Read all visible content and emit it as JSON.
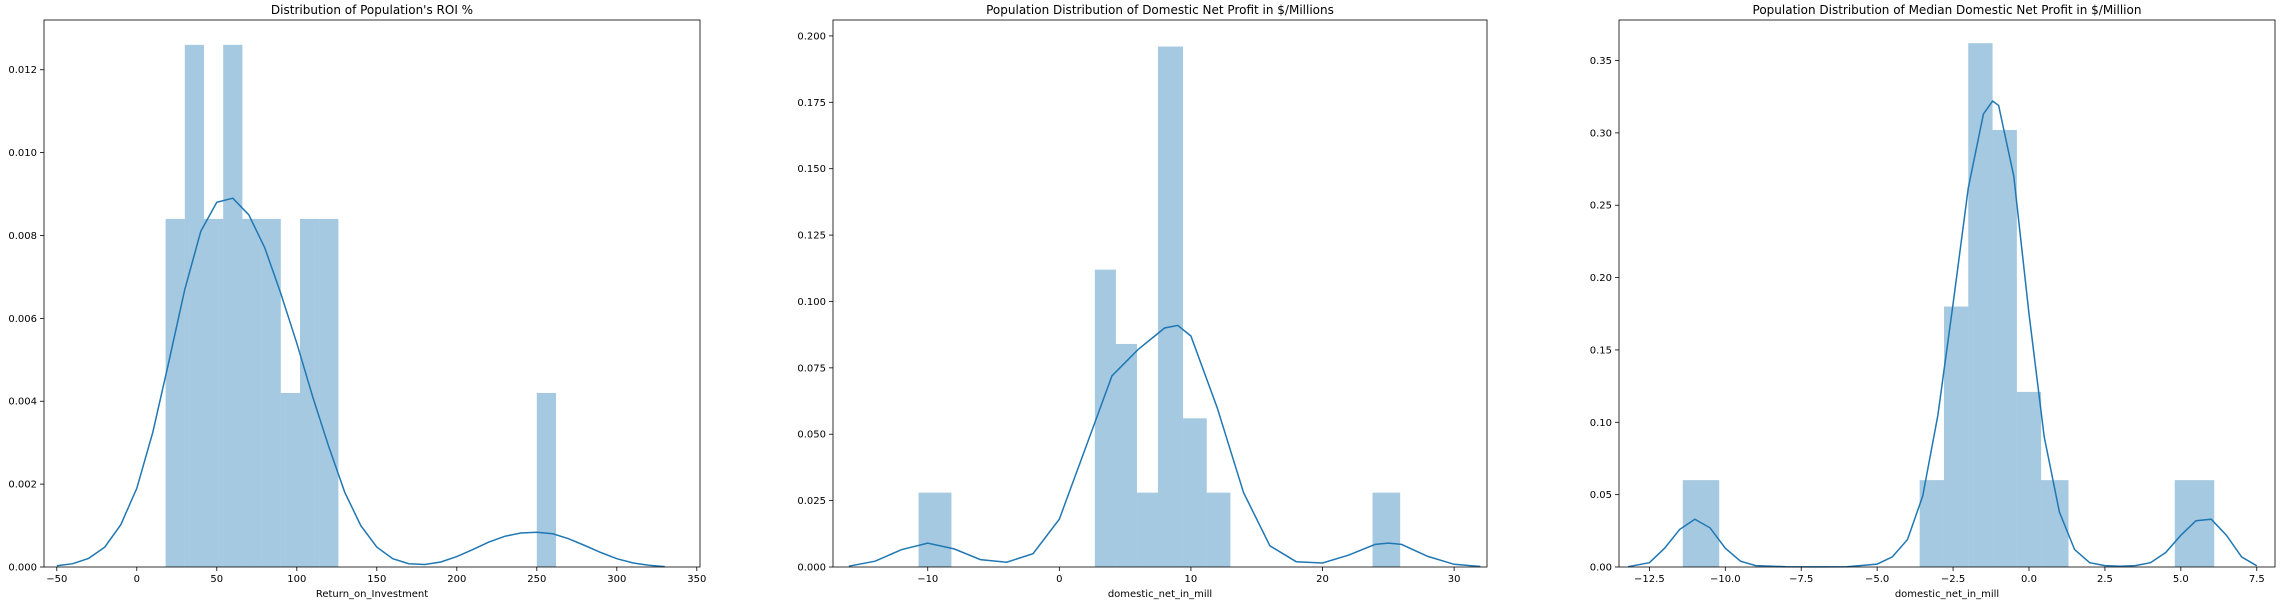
{
  "chart_data": [
    {
      "type": "histogram",
      "title": "Distribution of Population's ROI %",
      "xlabel": "Return_on_Investment",
      "ylabel": "",
      "xlim": [
        -58,
        352
      ],
      "ylim": [
        0,
        0.0132
      ],
      "xticks": [
        -50,
        0,
        50,
        100,
        150,
        200,
        250,
        300,
        350
      ],
      "yticks": [
        0.0,
        0.002,
        0.004,
        0.006,
        0.008,
        0.01,
        0.012
      ],
      "ytick_decimals": 3,
      "bins": [
        {
          "x0": 18,
          "x1": 30,
          "value": 0.0084
        },
        {
          "x0": 30,
          "x1": 42,
          "value": 0.0126
        },
        {
          "x0": 42,
          "x1": 54,
          "value": 0.0084
        },
        {
          "x0": 54,
          "x1": 66,
          "value": 0.0126
        },
        {
          "x0": 66,
          "x1": 78,
          "value": 0.0084
        },
        {
          "x0": 78,
          "x1": 90,
          "value": 0.0084
        },
        {
          "x0": 90,
          "x1": 102,
          "value": 0.0042
        },
        {
          "x0": 102,
          "x1": 114,
          "value": 0.0084
        },
        {
          "x0": 114,
          "x1": 126,
          "value": 0.0084
        },
        {
          "x0": 250,
          "x1": 262,
          "value": 0.0042
        }
      ],
      "kde": {
        "x": [
          -50,
          -40,
          -30,
          -20,
          -10,
          0,
          10,
          20,
          30,
          40,
          50,
          60,
          70,
          80,
          90,
          100,
          110,
          120,
          130,
          140,
          150,
          160,
          170,
          180,
          190,
          200,
          210,
          220,
          230,
          240,
          250,
          260,
          270,
          280,
          290,
          300,
          310,
          320,
          330
        ],
        "y": [
          3e-05,
          8e-05,
          0.00021,
          0.00048,
          0.00102,
          0.0019,
          0.00325,
          0.00495,
          0.0067,
          0.0081,
          0.0088,
          0.0089,
          0.0085,
          0.0077,
          0.0066,
          0.0054,
          0.0041,
          0.0029,
          0.0018,
          0.001,
          0.00048,
          0.0002,
          8e-05,
          6e-05,
          0.00012,
          0.00025,
          0.00042,
          0.0006,
          0.00074,
          0.00082,
          0.00084,
          0.0008,
          0.00068,
          0.00052,
          0.00035,
          0.0002,
          0.0001,
          4e-05,
          1e-05
        ]
      }
    },
    {
      "type": "histogram",
      "title": "Population Distribution of Domestic Net Profit in $/Millions",
      "xlabel": "domestic_net_in_mill",
      "ylabel": "",
      "xlim": [
        -17.2,
        32.5
      ],
      "ylim": [
        0,
        0.206
      ],
      "xticks": [
        -10,
        0,
        10,
        20,
        30
      ],
      "yticks": [
        0.0,
        0.025,
        0.05,
        0.075,
        0.1,
        0.125,
        0.15,
        0.175,
        0.2
      ],
      "ytick_decimals": 3,
      "bins": [
        {
          "x0": -10.7,
          "x1": -8.2,
          "value": 0.028
        },
        {
          "x0": 2.7,
          "x1": 4.3,
          "value": 0.112
        },
        {
          "x0": 4.3,
          "x1": 5.9,
          "value": 0.084
        },
        {
          "x0": 5.9,
          "x1": 7.5,
          "value": 0.028
        },
        {
          "x0": 7.5,
          "x1": 9.4,
          "value": 0.196
        },
        {
          "x0": 9.4,
          "x1": 11.2,
          "value": 0.056
        },
        {
          "x0": 11.2,
          "x1": 13.0,
          "value": 0.028
        },
        {
          "x0": 23.8,
          "x1": 25.9,
          "value": 0.028
        }
      ],
      "kde": {
        "x": [
          -16,
          -14,
          -12,
          -10,
          -8,
          -6,
          -4,
          -2,
          0,
          2,
          4,
          6,
          8,
          9,
          10,
          12,
          14,
          16,
          18,
          20,
          22,
          24,
          25,
          26,
          28,
          30,
          32
        ],
        "y": [
          0.0003,
          0.0022,
          0.0065,
          0.009,
          0.0068,
          0.0028,
          0.0018,
          0.005,
          0.018,
          0.045,
          0.072,
          0.082,
          0.09,
          0.091,
          0.087,
          0.06,
          0.028,
          0.008,
          0.002,
          0.0015,
          0.0045,
          0.0085,
          0.009,
          0.0085,
          0.004,
          0.001,
          0.0002
        ]
      }
    },
    {
      "type": "histogram",
      "title": "Population Distribution of Median Domestic Net Profit in $/Million",
      "xlabel": "domestic_net_in_mill",
      "ylabel": "",
      "xlim": [
        -13.5,
        8.1
      ],
      "ylim": [
        0,
        0.378
      ],
      "xticks": [
        -12.5,
        -10.0,
        -7.5,
        -5.0,
        -2.5,
        0.0,
        2.5,
        5.0,
        7.5
      ],
      "yticks": [
        0.0,
        0.05,
        0.1,
        0.15,
        0.2,
        0.25,
        0.3,
        0.35
      ],
      "ytick_decimals": 2,
      "bins": [
        {
          "x0": -11.4,
          "x1": -10.2,
          "value": 0.06
        },
        {
          "x0": -3.6,
          "x1": -2.8,
          "value": 0.06
        },
        {
          "x0": -2.8,
          "x1": -2.0,
          "value": 0.18
        },
        {
          "x0": -2.0,
          "x1": -1.2,
          "value": 0.362
        },
        {
          "x0": -1.2,
          "x1": -0.4,
          "value": 0.302
        },
        {
          "x0": -0.4,
          "x1": 0.4,
          "value": 0.121
        },
        {
          "x0": 0.4,
          "x1": 1.3,
          "value": 0.06
        },
        {
          "x0": 4.8,
          "x1": 6.1,
          "value": 0.06
        }
      ],
      "kde": {
        "x": [
          -13.2,
          -12.5,
          -12,
          -11.5,
          -11,
          -10.5,
          -10,
          -9.5,
          -9,
          -8,
          -7,
          -6,
          -5,
          -4.5,
          -4,
          -3.5,
          -3,
          -2.5,
          -2,
          -1.5,
          -1.2,
          -1,
          -0.5,
          0,
          0.5,
          1,
          1.5,
          2,
          2.5,
          3,
          3.5,
          4,
          4.5,
          5,
          5.5,
          6,
          6.5,
          7,
          7.5
        ],
        "y": [
          0.0002,
          0.003,
          0.013,
          0.026,
          0.033,
          0.027,
          0.013,
          0.004,
          0.001,
          0.0002,
          0.0001,
          0.0002,
          0.002,
          0.007,
          0.019,
          0.049,
          0.105,
          0.182,
          0.262,
          0.313,
          0.322,
          0.319,
          0.27,
          0.175,
          0.09,
          0.038,
          0.012,
          0.003,
          0.001,
          0.0005,
          0.001,
          0.003,
          0.01,
          0.022,
          0.032,
          0.033,
          0.022,
          0.007,
          0.0008
        ]
      }
    }
  ],
  "style": {
    "bar_color": "#1f77b4",
    "bar_opacity": 0.4,
    "kde_color": "#1f77b4"
  }
}
